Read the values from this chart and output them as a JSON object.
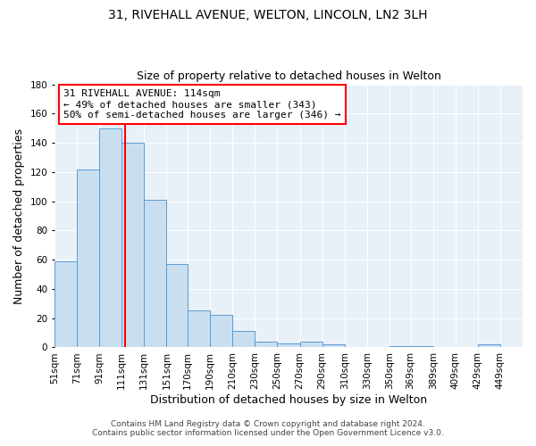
{
  "title1": "31, RIVEHALL AVENUE, WELTON, LINCOLN, LN2 3LH",
  "title2": "Size of property relative to detached houses in Welton",
  "xlabel": "Distribution of detached houses by size in Welton",
  "ylabel": "Number of detached properties",
  "bin_labels": [
    "51sqm",
    "71sqm",
    "91sqm",
    "111sqm",
    "131sqm",
    "151sqm",
    "170sqm",
    "190sqm",
    "210sqm",
    "230sqm",
    "250sqm",
    "270sqm",
    "290sqm",
    "310sqm",
    "330sqm",
    "350sqm",
    "369sqm",
    "389sqm",
    "409sqm",
    "429sqm",
    "449sqm"
  ],
  "bin_edges": [
    51,
    71,
    91,
    111,
    131,
    151,
    170,
    190,
    210,
    230,
    250,
    270,
    290,
    310,
    330,
    350,
    369,
    389,
    409,
    429,
    449
  ],
  "bar_heights": [
    59,
    122,
    150,
    140,
    101,
    57,
    25,
    22,
    11,
    4,
    3,
    4,
    2,
    0,
    0,
    1,
    1,
    0,
    0,
    2
  ],
  "bar_color": "#c9dff0",
  "bar_edge_color": "#5b9bd5",
  "red_line_x": 114,
  "ann_line1": "31 RIVEHALL AVENUE: 114sqm",
  "ann_line2": "← 49% of detached houses are smaller (343)",
  "ann_line3": "50% of semi-detached houses are larger (346) →",
  "ylim": [
    0,
    180
  ],
  "yticks": [
    0,
    20,
    40,
    60,
    80,
    100,
    120,
    140,
    160,
    180
  ],
  "xlim_left": 51,
  "xlim_right": 469,
  "footer1": "Contains HM Land Registry data © Crown copyright and database right 2024.",
  "footer2": "Contains public sector information licensed under the Open Government Licence v3.0.",
  "fig_facecolor": "#ffffff",
  "plot_facecolor": "#e8f0f8",
  "grid_color": "#ffffff",
  "title1_fontsize": 10,
  "title2_fontsize": 9,
  "axis_label_fontsize": 9,
  "tick_fontsize": 7.5,
  "ann_fontsize": 8,
  "footer_fontsize": 6.5
}
